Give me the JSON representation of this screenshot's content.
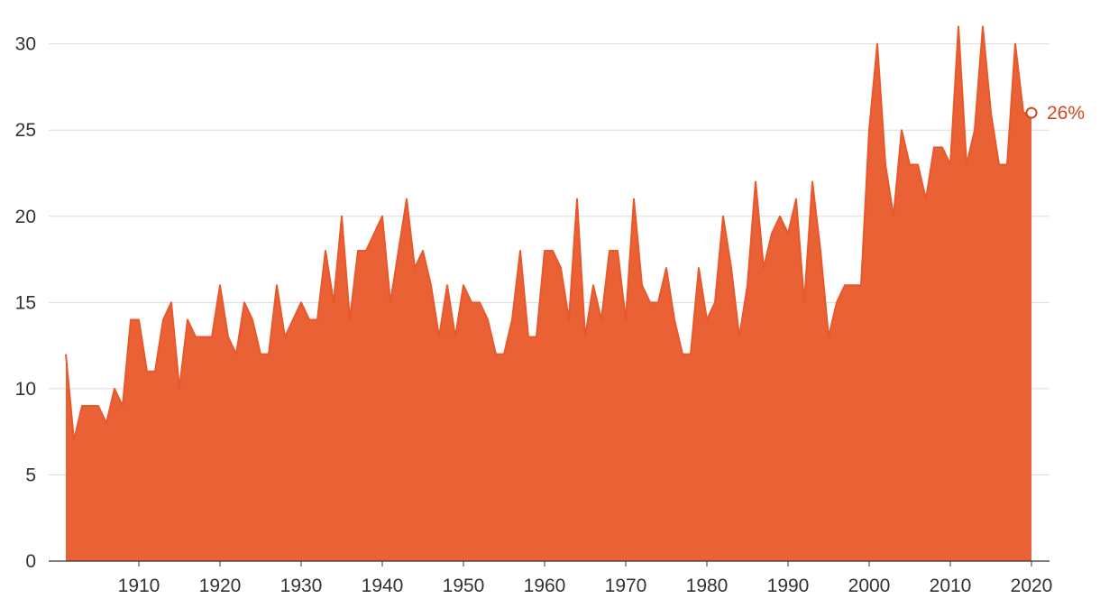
{
  "chart_data": {
    "type": "area",
    "title": "",
    "xlabel": "",
    "ylabel": "",
    "x": [
      1901,
      1902,
      1903,
      1904,
      1905,
      1906,
      1907,
      1908,
      1909,
      1910,
      1911,
      1912,
      1913,
      1914,
      1915,
      1916,
      1917,
      1918,
      1919,
      1920,
      1921,
      1922,
      1923,
      1924,
      1925,
      1926,
      1927,
      1928,
      1929,
      1930,
      1931,
      1932,
      1933,
      1934,
      1935,
      1936,
      1937,
      1938,
      1939,
      1940,
      1941,
      1942,
      1943,
      1944,
      1945,
      1946,
      1947,
      1948,
      1949,
      1950,
      1951,
      1952,
      1953,
      1954,
      1955,
      1956,
      1957,
      1958,
      1959,
      1960,
      1961,
      1962,
      1963,
      1964,
      1965,
      1966,
      1967,
      1968,
      1969,
      1970,
      1971,
      1972,
      1973,
      1974,
      1975,
      1976,
      1977,
      1978,
      1979,
      1980,
      1981,
      1982,
      1983,
      1984,
      1985,
      1986,
      1987,
      1988,
      1989,
      1990,
      1991,
      1992,
      1993,
      1994,
      1995,
      1996,
      1997,
      1998,
      1999,
      2000,
      2001,
      2002,
      2003,
      2004,
      2005,
      2006,
      2007,
      2008,
      2009,
      2010,
      2011,
      2012,
      2013,
      2014,
      2015,
      2016,
      2017,
      2018,
      2019,
      2020
    ],
    "values": [
      12,
      7,
      9,
      9,
      9,
      8,
      10,
      9,
      14,
      14,
      11,
      11,
      14,
      15,
      10,
      14,
      13,
      13,
      13,
      16,
      13,
      12,
      15,
      14,
      12,
      12,
      16,
      13,
      14,
      15,
      14,
      14,
      18,
      15,
      20,
      14,
      18,
      18,
      19,
      20,
      15,
      18,
      21,
      17,
      18,
      16,
      13,
      16,
      13,
      16,
      15,
      15,
      14,
      12,
      12,
      14,
      18,
      13,
      13,
      18,
      18,
      17,
      14,
      21,
      13,
      16,
      14,
      18,
      18,
      14,
      21,
      16,
      15,
      15,
      17,
      14,
      12,
      12,
      17,
      14,
      15,
      20,
      17,
      13,
      16,
      22,
      17,
      19,
      20,
      19,
      21,
      15,
      22,
      18,
      13,
      15,
      16,
      16,
      16,
      25,
      30,
      23,
      20,
      25,
      23,
      23,
      21,
      24,
      24,
      23,
      31,
      23,
      25,
      31,
      26,
      23,
      23,
      30,
      26,
      26
    ],
    "ylim": [
      0,
      31.5
    ],
    "yticks": [
      "0",
      "5",
      "10",
      "15",
      "20",
      "25",
      "30"
    ],
    "xticks": [
      "1910",
      "1920",
      "1930",
      "1940",
      "1950",
      "1960",
      "1970",
      "1980",
      "1990",
      "2000",
      "2010",
      "2020"
    ],
    "grid": true,
    "end_label": "26%",
    "series_color": "#e8582a",
    "end_label_color": "#d4461f"
  }
}
